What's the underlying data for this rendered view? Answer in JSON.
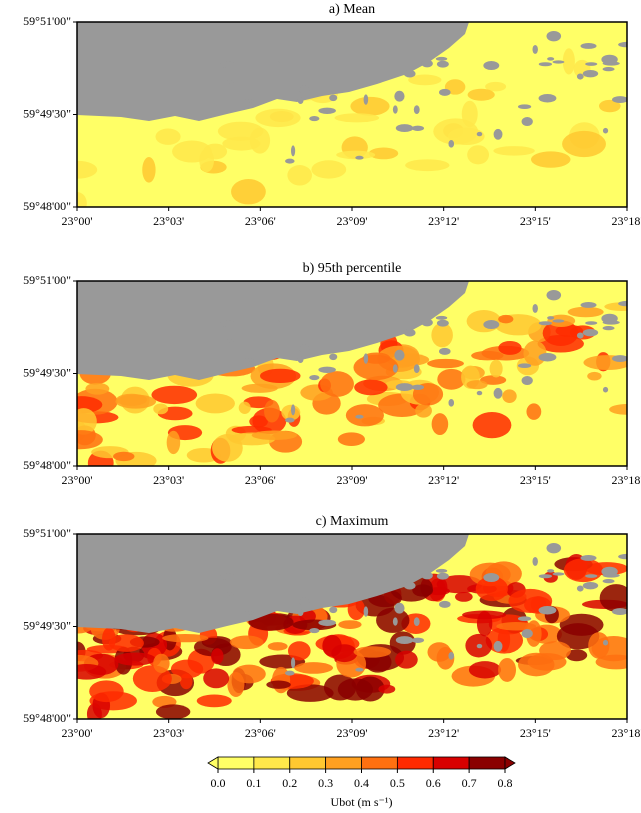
{
  "panels": [
    {
      "title": "a) Mean"
    },
    {
      "title": "b) 95th percentile"
    },
    {
      "title": "c) Maximum"
    }
  ],
  "x_ticks": [
    "23°00'",
    "23°03'",
    "23°06'",
    "23°09'",
    "23°12'",
    "23°15'",
    "23°18'"
  ],
  "y_ticks": [
    "59°51'00\"",
    "59°49'30\"",
    "59°48'00\""
  ],
  "colorbar": {
    "title": "Ubot (m s⁻¹)",
    "ticks": [
      {
        "value": 0,
        "label": "0.0"
      },
      {
        "value": 0.1,
        "label": "0.1"
      },
      {
        "value": 0.2,
        "label": "0.2"
      },
      {
        "value": 0.3,
        "label": "0.3"
      },
      {
        "value": 0.4,
        "label": "0.4"
      },
      {
        "value": 0.5,
        "label": "0.5"
      },
      {
        "value": 0.6,
        "label": "0.6"
      },
      {
        "value": 0.7,
        "label": "0.7"
      },
      {
        "value": 0.8,
        "label": "0.8"
      }
    ],
    "colors": [
      "#ffff66",
      "#ffe84a",
      "#ffc830",
      "#ffa020",
      "#ff7010",
      "#ff2a00",
      "#d80000",
      "#8a0000"
    ]
  }
}
